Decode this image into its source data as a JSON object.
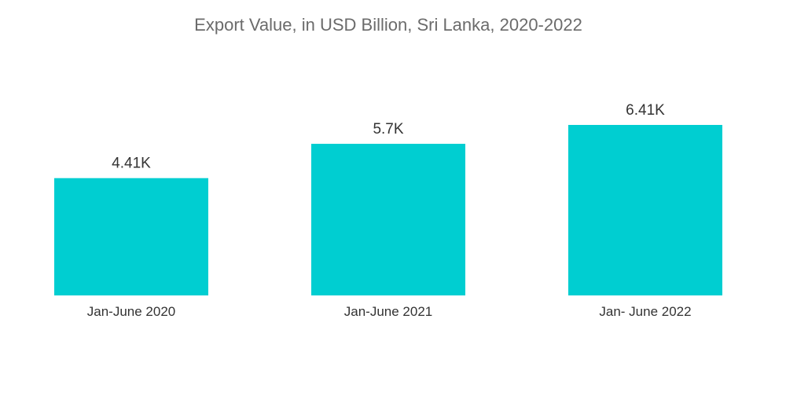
{
  "chart_data": {
    "type": "bar",
    "title": "Export Value, in USD Billion, Sri Lanka, 2020-2022",
    "xlabel": "",
    "ylabel": "",
    "categories": [
      "Jan-June 2020",
      "Jan-June 2021",
      "Jan- June 2022"
    ],
    "values": [
      4.41,
      5.7,
      6.41
    ],
    "value_labels": [
      "4.41K",
      "5.7K",
      "6.41K"
    ],
    "ylim": [
      0,
      6.41
    ],
    "grid": false,
    "legend": "none",
    "colors": {
      "bar": "#00CED1",
      "title": "#6b6b6b",
      "text": "#333333"
    }
  }
}
